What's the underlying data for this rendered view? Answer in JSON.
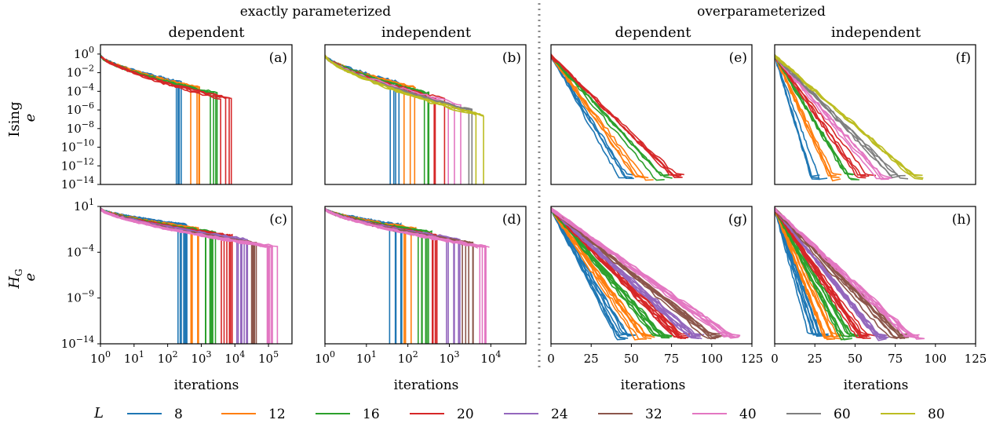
{
  "header": {
    "left_group": "exactly parameterized",
    "right_group": "overparameterized",
    "columns": [
      "dependent",
      "independent",
      "dependent",
      "independent"
    ]
  },
  "row_labels": [
    "Ising",
    "H_G"
  ],
  "y_axis_symbol": "e",
  "x_label": "iterations",
  "legend": {
    "title": "L",
    "entries": [
      {
        "label": "8",
        "color": "#1f77b4"
      },
      {
        "label": "12",
        "color": "#ff7f0e"
      },
      {
        "label": "16",
        "color": "#2ca02c"
      },
      {
        "label": "20",
        "color": "#d62728"
      },
      {
        "label": "24",
        "color": "#9467bd"
      },
      {
        "label": "32",
        "color": "#8c564b"
      },
      {
        "label": "40",
        "color": "#e377c2"
      },
      {
        "label": "60",
        "color": "#7f7f7f"
      },
      {
        "label": "80",
        "color": "#bcbd22"
      }
    ]
  },
  "chart_data": [
    {
      "panel": "(a)",
      "type": "line",
      "row": "Ising",
      "column": "exactly parameterized / dependent",
      "x_scale": "log",
      "xlim": [
        1,
        500000
      ],
      "y_scale": "log",
      "ylim": [
        1e-14,
        10
      ],
      "yticks": [
        "10^0",
        "10^-2",
        "10^-4",
        "10^-6",
        "10^-8",
        "10^-10",
        "10^-12",
        "10^-14"
      ],
      "series_L": [
        "8",
        "12",
        "16",
        "20"
      ]
    },
    {
      "panel": "(b)",
      "type": "line",
      "row": "Ising",
      "column": "exactly parameterized / independent",
      "x_scale": "log",
      "xlim": [
        1,
        70000
      ],
      "y_scale": "log",
      "ylim": [
        1e-14,
        10
      ],
      "series_L": [
        "8",
        "12",
        "16",
        "20",
        "40",
        "60",
        "80"
      ]
    },
    {
      "panel": "(e)",
      "type": "line",
      "row": "Ising",
      "column": "overparameterized / dependent",
      "x_scale": "linear",
      "xlim": [
        0,
        125
      ],
      "y_scale": "log",
      "ylim": [
        1e-14,
        10
      ],
      "series_L": [
        "8",
        "12",
        "16",
        "20"
      ]
    },
    {
      "panel": "(f)",
      "type": "line",
      "row": "Ising",
      "column": "overparameterized / independent",
      "x_scale": "linear",
      "xlim": [
        0,
        125
      ],
      "y_scale": "log",
      "ylim": [
        1e-14,
        10
      ],
      "series_L": [
        "8",
        "12",
        "16",
        "20",
        "40",
        "60",
        "80"
      ]
    },
    {
      "panel": "(c)",
      "type": "line",
      "row": "H_G",
      "column": "exactly parameterized / dependent",
      "x_scale": "log",
      "xlim": [
        1,
        500000
      ],
      "y_scale": "log",
      "ylim": [
        1e-14,
        10
      ],
      "yticks": [
        "10^1",
        "10^-4",
        "10^-9",
        "10^-14"
      ],
      "xticks": [
        "10^0",
        "10^1",
        "10^2",
        "10^3",
        "10^4",
        "10^5"
      ],
      "series_L": [
        "8",
        "12",
        "16",
        "20",
        "24",
        "32",
        "40"
      ]
    },
    {
      "panel": "(d)",
      "type": "line",
      "row": "H_G",
      "column": "exactly parameterized / independent",
      "x_scale": "log",
      "xlim": [
        1,
        70000
      ],
      "y_scale": "log",
      "ylim": [
        1e-14,
        10
      ],
      "xticks": [
        "10^0",
        "10^1",
        "10^2",
        "10^3",
        "10^4"
      ],
      "series_L": [
        "8",
        "12",
        "16",
        "20",
        "24",
        "32",
        "40"
      ]
    },
    {
      "panel": "(g)",
      "type": "line",
      "row": "H_G",
      "column": "overparameterized / dependent",
      "x_scale": "linear",
      "xlim": [
        0,
        125
      ],
      "y_scale": "log",
      "ylim": [
        1e-14,
        10
      ],
      "xticks": [
        "0",
        "25",
        "50",
        "75",
        "100",
        "125"
      ],
      "series_L": [
        "8",
        "12",
        "16",
        "20",
        "24",
        "32",
        "40"
      ]
    },
    {
      "panel": "(h)",
      "type": "line",
      "row": "H_G",
      "column": "overparameterized / independent",
      "x_scale": "linear",
      "xlim": [
        0,
        125
      ],
      "y_scale": "log",
      "ylim": [
        1e-14,
        10
      ],
      "xticks": [
        "0",
        "25",
        "50",
        "75",
        "100",
        "125"
      ],
      "series_L": [
        "8",
        "12",
        "16",
        "20",
        "24",
        "32",
        "40"
      ]
    }
  ]
}
